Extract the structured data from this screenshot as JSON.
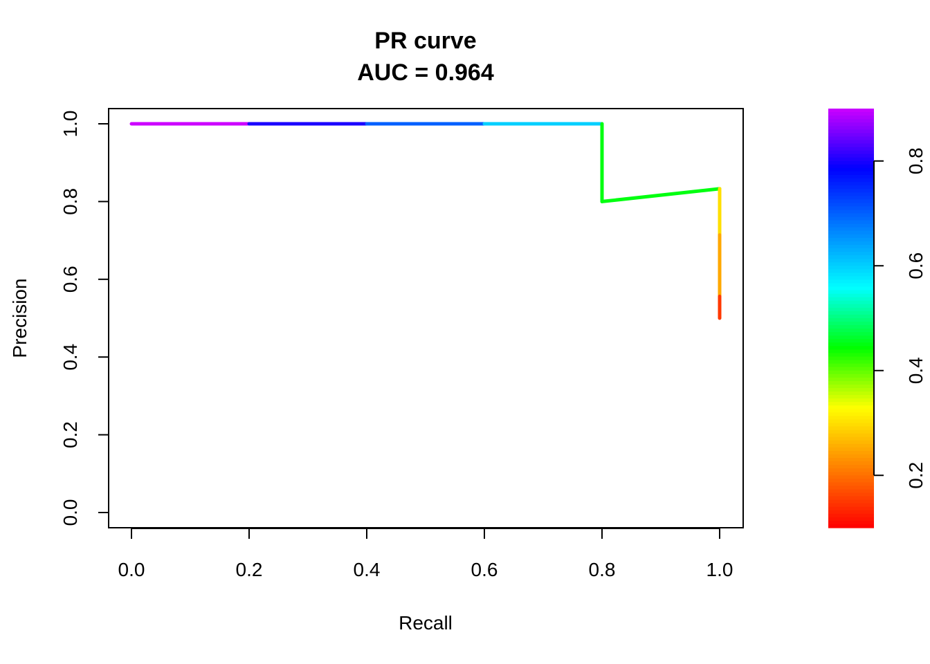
{
  "chart_data": {
    "type": "line",
    "title": "PR curve",
    "subtitle": "AUC = 0.964",
    "xlabel": "Recall",
    "ylabel": "Precision",
    "xlim": [
      0,
      1
    ],
    "ylim": [
      0,
      1
    ],
    "x_ticks": [
      "0.0",
      "0.2",
      "0.4",
      "0.6",
      "0.8",
      "1.0"
    ],
    "y_ticks": [
      "0.0",
      "0.2",
      "0.4",
      "0.6",
      "0.8",
      "1.0"
    ],
    "points": [
      {
        "x": 0.0,
        "y": 1.0,
        "threshold": 0.9
      },
      {
        "x": 0.2,
        "y": 1.0,
        "threshold": 0.8
      },
      {
        "x": 0.4,
        "y": 1.0,
        "threshold": 0.7
      },
      {
        "x": 0.6,
        "y": 1.0,
        "threshold": 0.6
      },
      {
        "x": 0.8,
        "y": 1.0,
        "threshold": 0.45
      },
      {
        "x": 0.8,
        "y": 0.8,
        "threshold": 0.45
      },
      {
        "x": 1.0,
        "y": 0.833,
        "threshold": 0.3
      },
      {
        "x": 1.0,
        "y": 0.714,
        "threshold": 0.25
      },
      {
        "x": 1.0,
        "y": 0.556,
        "threshold": 0.15
      },
      {
        "x": 1.0,
        "y": 0.5,
        "threshold": 0.1
      }
    ],
    "colorbar": {
      "range": [
        0.1,
        0.9
      ],
      "ticks": [
        "0.2",
        "0.4",
        "0.6",
        "0.8"
      ],
      "colors": [
        "#ff0000",
        "#ff8000",
        "#ffff00",
        "#00ff00",
        "#00ffff",
        "#0080ff",
        "#0000ff",
        "#cc00ff"
      ]
    },
    "grid": false,
    "legend": "colorbar-right"
  }
}
